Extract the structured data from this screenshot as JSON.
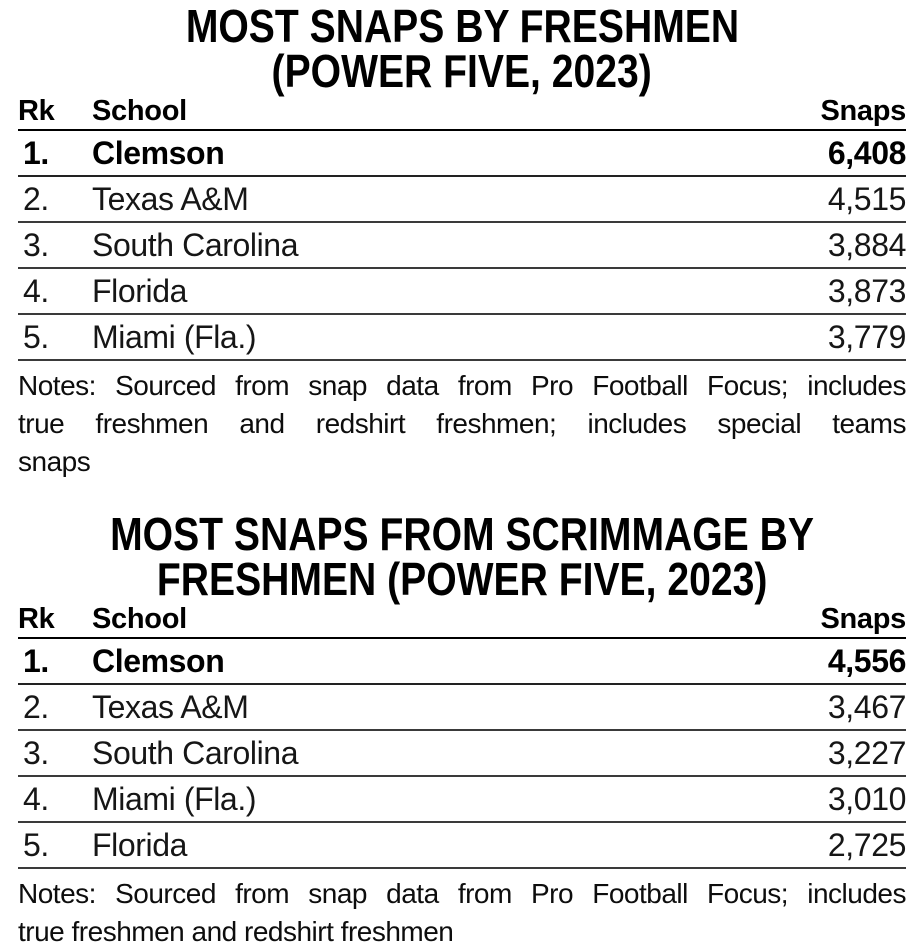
{
  "colors": {
    "text": "#000000",
    "row_text": "#161616",
    "rule": "#3a3a3a",
    "header_rule": "#000000",
    "background": "#ffffff"
  },
  "chart_data": [
    {
      "type": "table",
      "title": "MOST SNAPS BY FRESHMEN (POWER FIVE, 2023)",
      "title_lines": [
        "MOST SNAPS BY FRESHMEN",
        "(POWER FIVE, 2023)"
      ],
      "columns": [
        "Rk",
        "School",
        "Snaps"
      ],
      "rows": [
        {
          "rank": 1,
          "rank_display": "1.",
          "school": "Clemson",
          "snaps": 6408,
          "snaps_display": "6,408",
          "bold": true
        },
        {
          "rank": 2,
          "rank_display": "2.",
          "school": "Texas A&M",
          "snaps": 4515,
          "snaps_display": "4,515",
          "bold": false
        },
        {
          "rank": 3,
          "rank_display": "3.",
          "school": "South Carolina",
          "snaps": 3884,
          "snaps_display": "3,884",
          "bold": false
        },
        {
          "rank": 4,
          "rank_display": "4.",
          "school": "Florida",
          "snaps": 3873,
          "snaps_display": "3,873",
          "bold": false
        },
        {
          "rank": 5,
          "rank_display": "5.",
          "school": "Miami (Fla.)",
          "snaps": 3779,
          "snaps_display": "3,779",
          "bold": false
        }
      ],
      "notes": "Notes: Sourced from snap data from Pro Football Focus; includes true freshmen and redshirt freshmen; includes special teams snaps",
      "notes_lines": [
        "Notes: Sourced from snap data from Pro Football Focus; includes",
        "true freshmen and redshirt freshmen; includes special teams",
        "snaps"
      ]
    },
    {
      "type": "table",
      "title": "MOST SNAPS FROM SCRIMMAGE BY FRESHMEN (POWER FIVE, 2023)",
      "title_lines": [
        "MOST SNAPS FROM SCRIMMAGE BY",
        "FRESHMEN (POWER FIVE, 2023)"
      ],
      "columns": [
        "Rk",
        "School",
        "Snaps"
      ],
      "rows": [
        {
          "rank": 1,
          "rank_display": "1.",
          "school": "Clemson",
          "snaps": 4556,
          "snaps_display": "4,556",
          "bold": true
        },
        {
          "rank": 2,
          "rank_display": "2.",
          "school": "Texas A&M",
          "snaps": 3467,
          "snaps_display": "3,467",
          "bold": false
        },
        {
          "rank": 3,
          "rank_display": "3.",
          "school": "South Carolina",
          "snaps": 3227,
          "snaps_display": "3,227",
          "bold": false
        },
        {
          "rank": 4,
          "rank_display": "4.",
          "school": "Miami (Fla.)",
          "snaps": 3010,
          "snaps_display": "3,010",
          "bold": false
        },
        {
          "rank": 5,
          "rank_display": "5.",
          "school": "Florida",
          "snaps": 2725,
          "snaps_display": "2,725",
          "bold": false
        }
      ],
      "notes": "Notes: Sourced from snap data from Pro Football Focus; includes true freshmen and redshirt freshmen",
      "notes_lines": [
        "Notes: Sourced from snap data from Pro Football Focus; includes",
        "true freshmen and redshirt freshmen"
      ]
    }
  ]
}
